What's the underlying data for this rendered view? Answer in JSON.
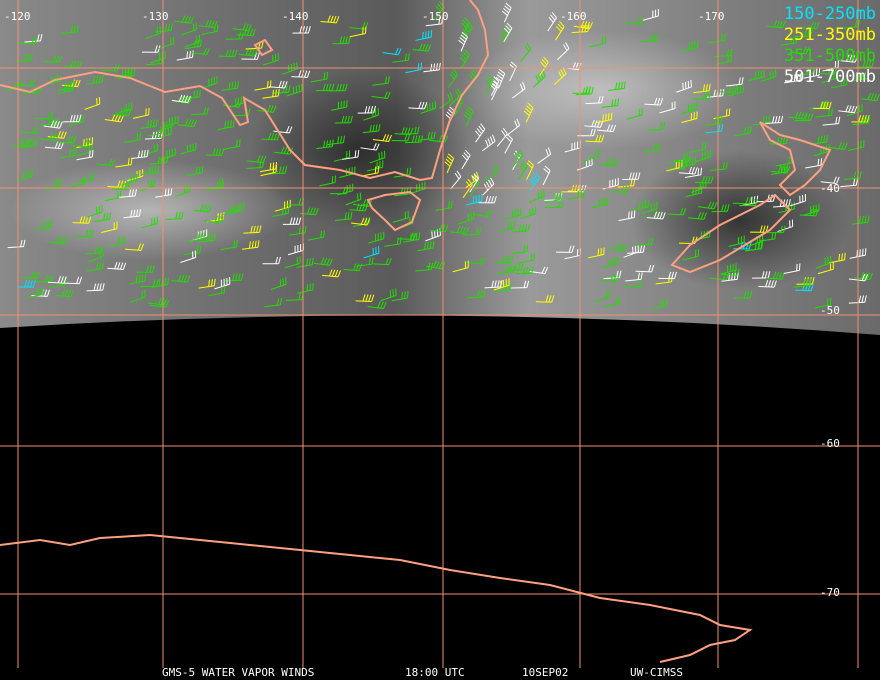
{
  "longitude_labels": [
    "-120",
    "-130",
    "-140",
    "-150",
    "-160",
    "-170"
  ],
  "latitude_labels": [
    "-40",
    "-50",
    "-60",
    "-70"
  ],
  "legend": [
    {
      "label": "150-250mb",
      "color": "#00e5ff"
    },
    {
      "label": "251-350mb",
      "color": "#ffff00"
    },
    {
      "label": "351-500mb",
      "color": "#22dd00"
    },
    {
      "label": "501-700mb",
      "color": "#ffffff"
    }
  ],
  "footer": [
    "GMS-5 WATER VAPOR WINDS",
    "18:00 UTC",
    "10SEP02",
    "UW-CIMSS"
  ]
}
